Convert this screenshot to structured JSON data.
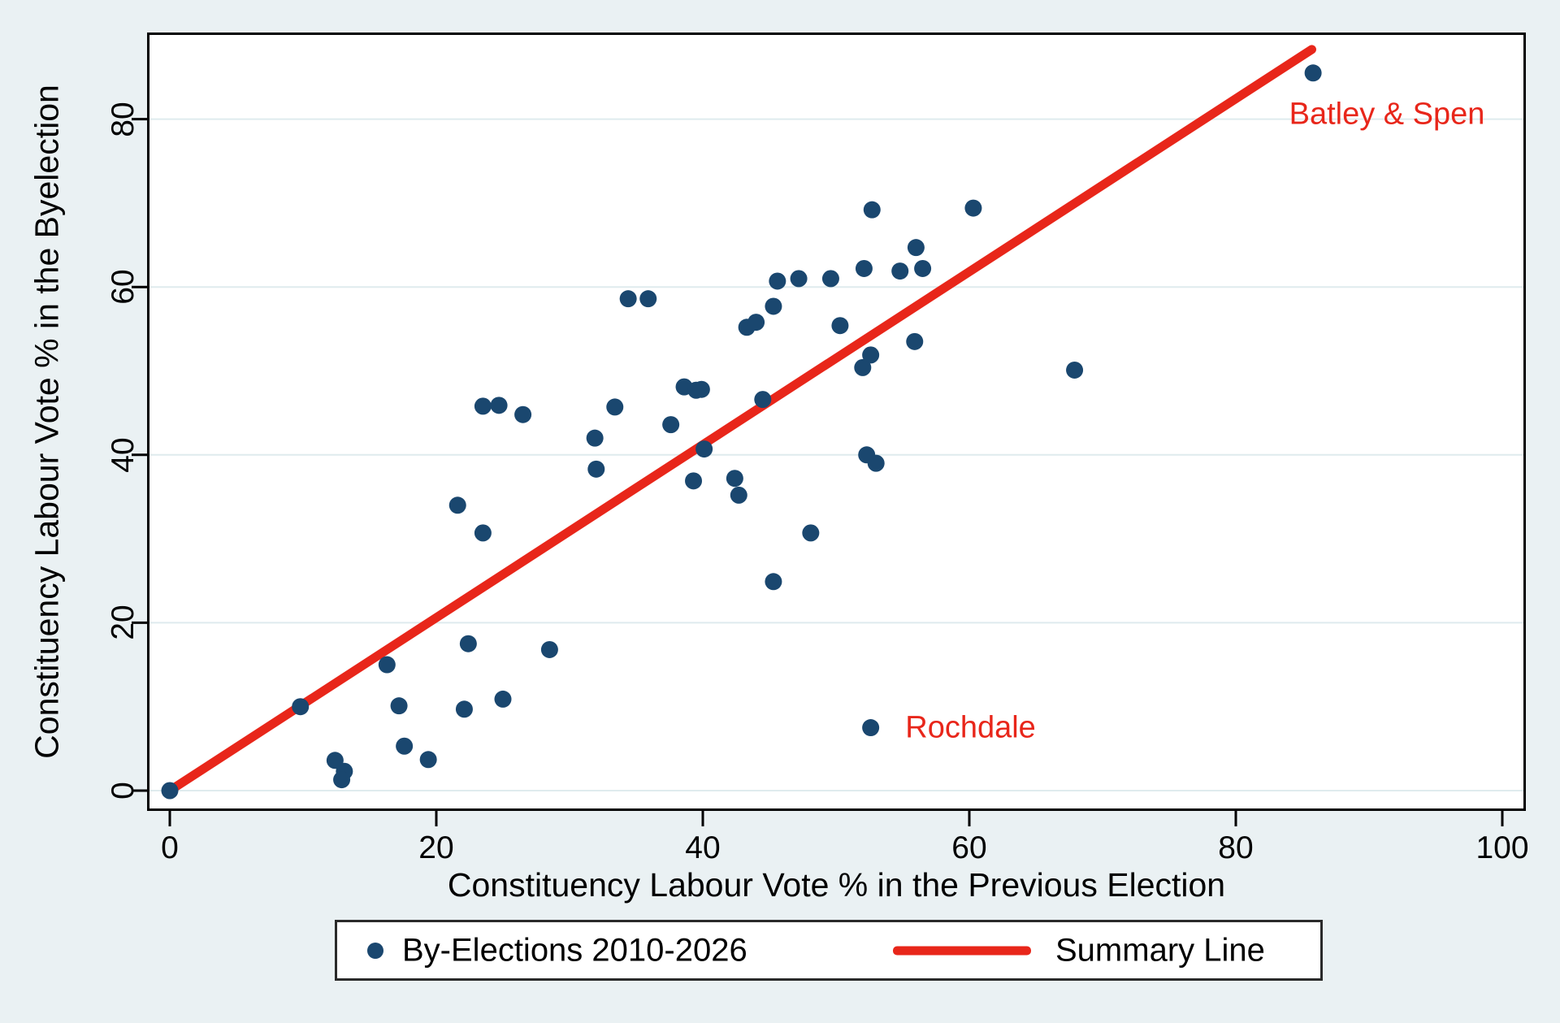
{
  "chart_data": {
    "type": "scatter",
    "title": "",
    "xlabel": "Constituency Labour Vote % in the Previous Election",
    "ylabel": "Constituency Labour Vote % in the Byelection",
    "x_ticks": [
      0,
      20,
      40,
      60,
      80,
      100
    ],
    "y_ticks": [
      0,
      20,
      40,
      60,
      80
    ],
    "xlim": [
      -1.7,
      102
    ],
    "ylim": [
      -3.9,
      90.3
    ],
    "grid": "horizontal",
    "points": [
      [
        0,
        0
      ],
      [
        9.8,
        10
      ],
      [
        12.4,
        3.6
      ],
      [
        13.1,
        2.3
      ],
      [
        12.9,
        1.3
      ],
      [
        16.3,
        15
      ],
      [
        17.2,
        10.1
      ],
      [
        17.6,
        5.3
      ],
      [
        19.4,
        3.7
      ],
      [
        21.6,
        34
      ],
      [
        22.4,
        17.5
      ],
      [
        22.1,
        9.7
      ],
      [
        23.5,
        45.8
      ],
      [
        24.7,
        45.9
      ],
      [
        26.5,
        44.8
      ],
      [
        23.5,
        30.7
      ],
      [
        25,
        10.9
      ],
      [
        28.5,
        16.8
      ],
      [
        31.9,
        42
      ],
      [
        32,
        38.3
      ],
      [
        33.4,
        45.7
      ],
      [
        34.4,
        58.6
      ],
      [
        35.9,
        58.6
      ],
      [
        37.6,
        43.6
      ],
      [
        38.6,
        48.1
      ],
      [
        39.5,
        47.7
      ],
      [
        39.9,
        47.8
      ],
      [
        40.1,
        40.7
      ],
      [
        39.3,
        36.9
      ],
      [
        42.4,
        37.2
      ],
      [
        42.7,
        35.2
      ],
      [
        43.3,
        55.2
      ],
      [
        44,
        55.8
      ],
      [
        44.5,
        46.6
      ],
      [
        45.3,
        57.7
      ],
      [
        45.6,
        60.7
      ],
      [
        47.2,
        61
      ],
      [
        45.3,
        24.9
      ],
      [
        48.1,
        30.7
      ],
      [
        49.6,
        61
      ],
      [
        50.3,
        55.4
      ],
      [
        52.1,
        62.2
      ],
      [
        52.7,
        69.2
      ],
      [
        52.3,
        40
      ],
      [
        53,
        39
      ],
      [
        52,
        50.4
      ],
      [
        52.6,
        51.9
      ],
      [
        52.6,
        7.5
      ],
      [
        54.8,
        61.9
      ],
      [
        56.5,
        62.2
      ],
      [
        56,
        64.7
      ],
      [
        55.9,
        53.5
      ],
      [
        60.3,
        69.4
      ],
      [
        67.9,
        50.1
      ],
      [
        85.8,
        85.5
      ]
    ],
    "summary_line": {
      "x1": 0,
      "y1": 0,
      "x2": 85.7,
      "y2": 88.3
    },
    "annotations": [
      {
        "text": "Batley & Spen",
        "x": 84,
        "y": 80.6,
        "anchor": "start"
      },
      {
        "text": "Rochdale",
        "x": 55.2,
        "y": 7.5,
        "anchor": "start"
      }
    ],
    "legend": {
      "items": [
        {
          "label": "By-Elections 2010-2026",
          "marker": "dot"
        },
        {
          "label": "Summary Line",
          "marker": "line"
        }
      ]
    },
    "colors": {
      "point": "#1a476f",
      "line": "#e8261a",
      "annotation": "#e8261a",
      "background": "#eaf1f3",
      "plot_bg": "#ffffff",
      "grid": "#dfebee",
      "axis": "#000000"
    }
  }
}
